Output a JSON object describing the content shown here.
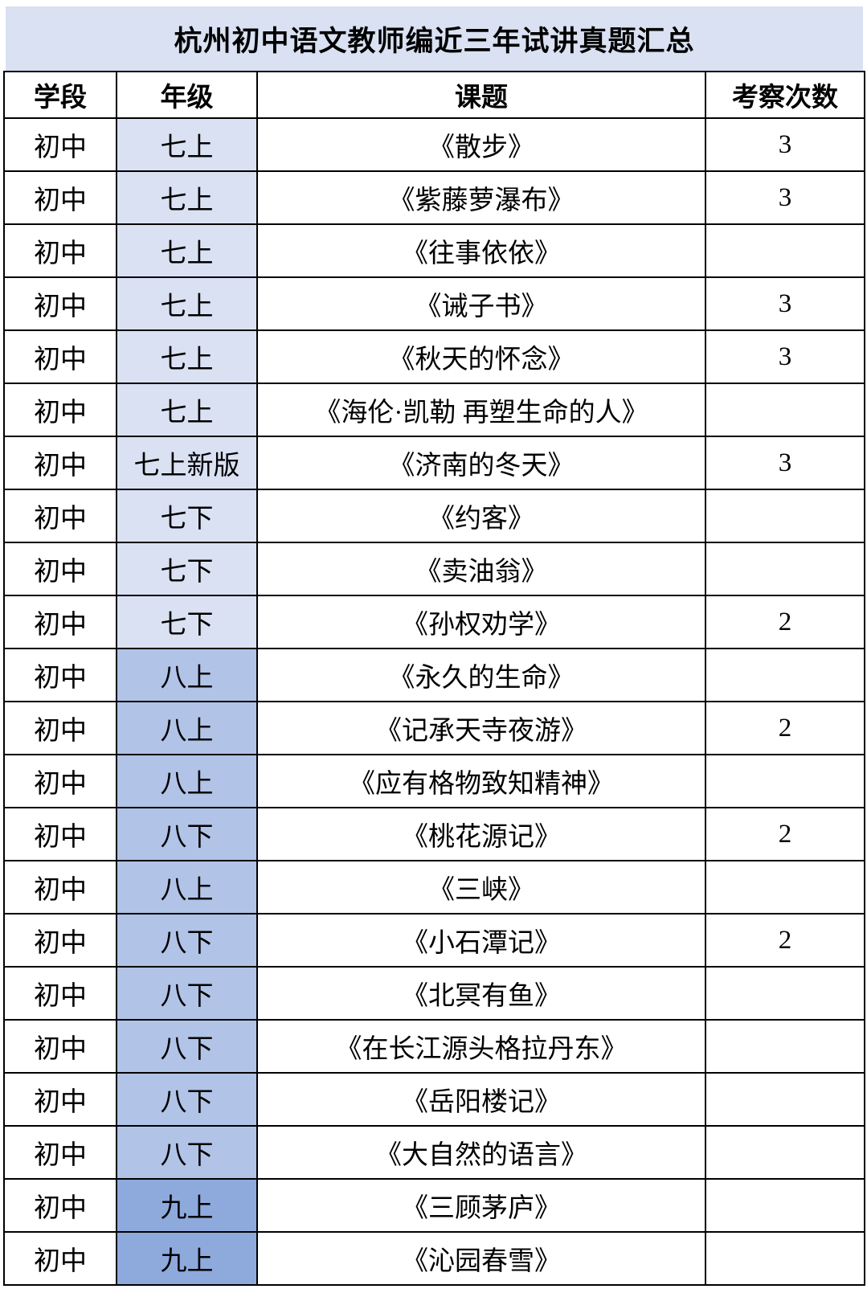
{
  "title": "杭州初中语文教师编近三年试讲真题汇总",
  "colors": {
    "banner_bg": "#d9e1f2",
    "grade7_bg": "#dae1f3",
    "grade8_bg": "#b1c3e6",
    "grade9_bg": "#8ea9dc",
    "border": "#000000",
    "text": "#000000"
  },
  "table": {
    "headers": [
      "学段",
      "年级",
      "课题",
      "考察次数"
    ],
    "rows": [
      {
        "stage": "初中",
        "grade": "七上",
        "topic": "《散步》",
        "count": "3"
      },
      {
        "stage": "初中",
        "grade": "七上",
        "topic": "《紫藤萝瀑布》",
        "count": "3"
      },
      {
        "stage": "初中",
        "grade": "七上",
        "topic": "《往事依依》",
        "count": ""
      },
      {
        "stage": "初中",
        "grade": "七上",
        "topic": "《诫子书》",
        "count": "3"
      },
      {
        "stage": "初中",
        "grade": "七上",
        "topic": "《秋天的怀念》",
        "count": "3"
      },
      {
        "stage": "初中",
        "grade": "七上",
        "topic": "《海伦·凯勒 再塑生命的人》",
        "count": ""
      },
      {
        "stage": "初中",
        "grade": "七上新版",
        "topic": "《济南的冬天》",
        "count": "3"
      },
      {
        "stage": "初中",
        "grade": "七下",
        "topic": "《约客》",
        "count": ""
      },
      {
        "stage": "初中",
        "grade": "七下",
        "topic": "《卖油翁》",
        "count": ""
      },
      {
        "stage": "初中",
        "grade": "七下",
        "topic": "《孙权劝学》",
        "count": "2"
      },
      {
        "stage": "初中",
        "grade": "八上",
        "topic": "《永久的生命》",
        "count": ""
      },
      {
        "stage": "初中",
        "grade": "八上",
        "topic": "《记承天寺夜游》",
        "count": "2"
      },
      {
        "stage": "初中",
        "grade": "八上",
        "topic": "《应有格物致知精神》",
        "count": ""
      },
      {
        "stage": "初中",
        "grade": "八下",
        "topic": "《桃花源记》",
        "count": "2"
      },
      {
        "stage": "初中",
        "grade": "八上",
        "topic": "《三峡》",
        "count": ""
      },
      {
        "stage": "初中",
        "grade": "八下",
        "topic": "《小石潭记》",
        "count": "2"
      },
      {
        "stage": "初中",
        "grade": "八下",
        "topic": "《北冥有鱼》",
        "count": ""
      },
      {
        "stage": "初中",
        "grade": "八下",
        "topic": "《在长江源头格拉丹东》",
        "count": ""
      },
      {
        "stage": "初中",
        "grade": "八下",
        "topic": "《岳阳楼记》",
        "count": ""
      },
      {
        "stage": "初中",
        "grade": "八下",
        "topic": "《大自然的语言》",
        "count": ""
      },
      {
        "stage": "初中",
        "grade": "九上",
        "topic": "《三顾茅庐》",
        "count": ""
      },
      {
        "stage": "初中",
        "grade": "九上",
        "topic": "《沁园春雪》",
        "count": ""
      }
    ]
  }
}
